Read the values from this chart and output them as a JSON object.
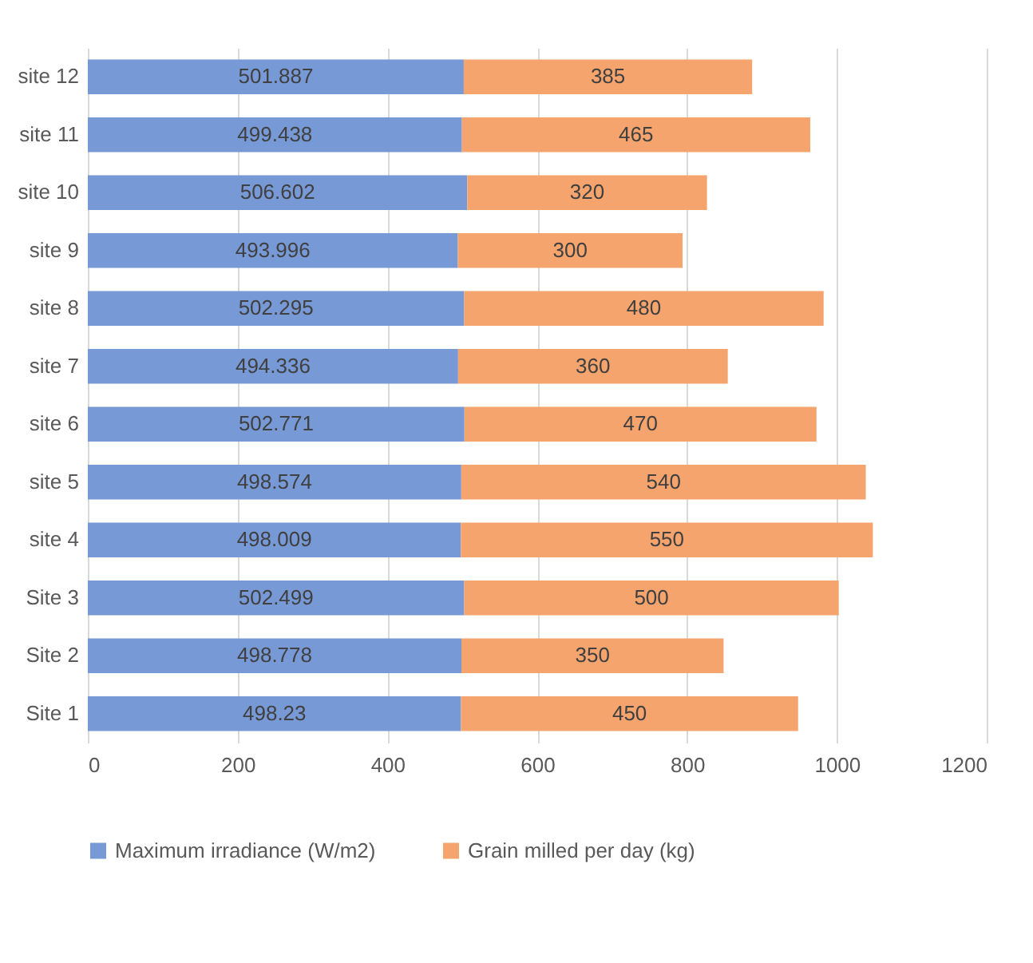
{
  "chart_data": {
    "type": "bar",
    "orientation": "horizontal",
    "stacked": true,
    "categories": [
      "site 12",
      "site 11",
      "site 10",
      "site 9",
      "site 8",
      "site 7",
      "site 6",
      "site 5",
      "site 4",
      "Site 3",
      "Site 2",
      "Site 1"
    ],
    "series": [
      {
        "name": "Maximum irradiance (W/m2)",
        "color": "#7799d6",
        "values": [
          501.887,
          499.438,
          506.602,
          493.996,
          502.295,
          494.336,
          502.771,
          498.574,
          498.009,
          502.499,
          498.778,
          498.23
        ]
      },
      {
        "name": "Grain milled per day (kg)",
        "color": "#f4a46c",
        "values": [
          385,
          465,
          320,
          300,
          480,
          360,
          470,
          540,
          550,
          500,
          350,
          450
        ]
      }
    ],
    "xlim": [
      0,
      1200
    ],
    "xticks": [
      0,
      200,
      400,
      600,
      800,
      1000,
      1200
    ],
    "grid": "x",
    "legend": "bottom",
    "data_labels": true
  }
}
